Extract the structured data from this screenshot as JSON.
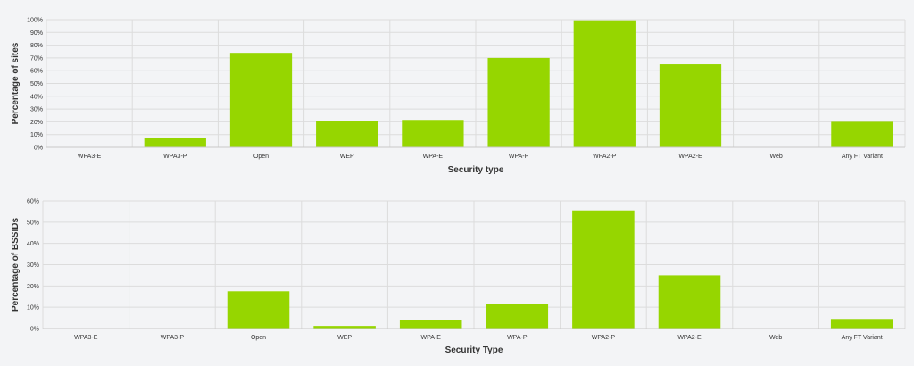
{
  "colors": {
    "bar": "#96d600",
    "grid": "#dcdcdc",
    "background": "#f3f4f6"
  },
  "chart_data": [
    {
      "type": "bar",
      "title": "",
      "xlabel": "Security type",
      "ylabel": "Percentage of sites",
      "categories": [
        "WPA3-E",
        "WPA3-P",
        "Open",
        "WEP",
        "WPA-E",
        "WPA-P",
        "WPA2-P",
        "WPA2-E",
        "Web",
        "Any FT Variant"
      ],
      "values": [
        0,
        7,
        74,
        20.5,
        21.5,
        70,
        99.5,
        65,
        0,
        20
      ],
      "ylim": [
        0,
        100
      ],
      "yticks": [
        0,
        10,
        20,
        30,
        40,
        50,
        60,
        70,
        80,
        90,
        100
      ],
      "ytick_labels": [
        "0%",
        "10%",
        "20%",
        "30%",
        "40%",
        "50%",
        "60%",
        "70%",
        "80%",
        "90%",
        "100%"
      ],
      "grid": true,
      "legend": "none"
    },
    {
      "type": "bar",
      "title": "",
      "xlabel": "Security Type",
      "ylabel": "Percentage of BSSIDs",
      "categories": [
        "WPA3-E",
        "WPA3-P",
        "Open",
        "WEP",
        "WPA-E",
        "WPA-P",
        "WPA2-P",
        "WPA2-E",
        "Web",
        "Any FT Variant"
      ],
      "values": [
        0,
        0.2,
        17.5,
        1.2,
        3.8,
        11.5,
        55.5,
        25,
        0,
        4.5
      ],
      "ylim": [
        0,
        60
      ],
      "yticks": [
        0,
        10,
        20,
        30,
        40,
        50,
        60
      ],
      "ytick_labels": [
        "0%",
        "10%",
        "20%",
        "30%",
        "40%",
        "50%",
        "60%"
      ],
      "grid": true,
      "legend": "none"
    }
  ]
}
